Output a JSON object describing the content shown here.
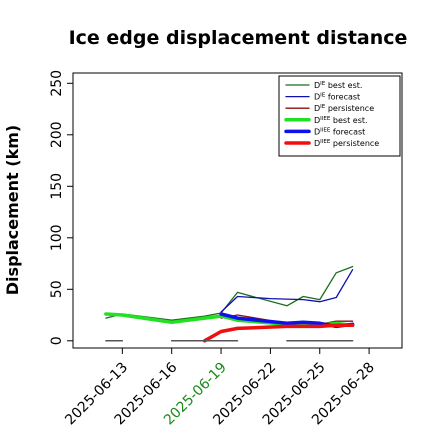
{
  "chart_data": {
    "type": "line",
    "title": "Ice edge displacement distance",
    "ylabel": "Displacement (km)",
    "xlabel": "",
    "ylim": [
      -7,
      260
    ],
    "yticks": [
      0,
      50,
      100,
      150,
      200,
      250
    ],
    "x_axis": {
      "type": "date",
      "range": [
        "2025-06-10",
        "2025-06-30"
      ],
      "ticks": [
        {
          "date": "2025-06-13",
          "label": "2025-06-13",
          "color": "#000000"
        },
        {
          "date": "2025-06-16",
          "label": "2025-06-16",
          "color": "#000000"
        },
        {
          "date": "2025-06-19",
          "label": "2025-06-19",
          "color": "#1a8a1a"
        },
        {
          "date": "2025-06-22",
          "label": "2025-06-22",
          "color": "#000000"
        },
        {
          "date": "2025-06-25",
          "label": "2025-06-25",
          "color": "#000000"
        },
        {
          "date": "2025-06-28",
          "label": "2025-06-28",
          "color": "#000000"
        }
      ]
    },
    "legend": {
      "placement": "top-right",
      "entries": [
        {
          "base": "D",
          "sup": "IE",
          "text": "best est.",
          "color": "#1a6e1a",
          "width": 1.3
        },
        {
          "base": "D",
          "sup": "IE",
          "text": "forecast",
          "color": "#1010b0",
          "width": 1.3
        },
        {
          "base": "D",
          "sup": "IE",
          "text": "persistence",
          "color": "#8b1010",
          "width": 1.3
        },
        {
          "base": "D",
          "sup": "IIEE",
          "text": "best est.",
          "color": "#22e022",
          "width": 3.5
        },
        {
          "base": "D",
          "sup": "IIEE",
          "text": "forecast",
          "color": "#1010ee",
          "width": 3.5
        },
        {
          "base": "D",
          "sup": "IIEE",
          "text": "persistence",
          "color": "#ee1010",
          "width": 3.5
        }
      ]
    },
    "series": [
      {
        "color": "#1a6e1a",
        "width": 1.3,
        "points": [
          [
            "2025-06-12",
            22
          ],
          [
            "2025-06-13",
            26
          ],
          [
            "2025-06-16",
            20
          ],
          [
            "2025-06-18",
            24
          ],
          [
            "2025-06-19",
            27
          ],
          [
            "2025-06-20",
            47
          ],
          [
            "2025-06-23",
            34
          ],
          [
            "2025-06-24",
            43
          ],
          [
            "2025-06-25",
            40
          ],
          [
            "2025-06-26",
            66
          ],
          [
            "2025-06-27",
            72
          ]
        ]
      },
      {
        "color": "#1010b0",
        "width": 1.3,
        "points": [
          [
            "2025-06-19",
            28
          ],
          [
            "2025-06-20",
            43
          ],
          [
            "2025-06-22",
            41
          ],
          [
            "2025-06-24",
            40
          ],
          [
            "2025-06-25",
            38
          ],
          [
            "2025-06-26",
            42
          ],
          [
            "2025-06-27",
            69
          ]
        ]
      },
      {
        "color": "#8b1010",
        "width": 1.3,
        "points": [
          [
            "2025-06-19",
            22
          ],
          [
            "2025-06-20",
            25
          ],
          [
            "2025-06-23",
            17
          ],
          [
            "2025-06-25",
            16
          ],
          [
            "2025-06-26",
            19
          ],
          [
            "2025-06-27",
            19
          ]
        ]
      },
      {
        "color": "#22e022",
        "width": 3.5,
        "points": [
          [
            "2025-06-12",
            26
          ],
          [
            "2025-06-13",
            25
          ],
          [
            "2025-06-16",
            18
          ],
          [
            "2025-06-19",
            24
          ],
          [
            "2025-06-20",
            20
          ],
          [
            "2025-06-23",
            16
          ],
          [
            "2025-06-24",
            16
          ],
          [
            "2025-06-25",
            15
          ],
          [
            "2025-06-26",
            17
          ],
          [
            "2025-06-27",
            15
          ]
        ]
      },
      {
        "color": "#1010ee",
        "width": 3.5,
        "points": [
          [
            "2025-06-19",
            26
          ],
          [
            "2025-06-20",
            22
          ],
          [
            "2025-06-23",
            17
          ],
          [
            "2025-06-24",
            18
          ],
          [
            "2025-06-25",
            17
          ],
          [
            "2025-06-26",
            14
          ],
          [
            "2025-06-27",
            16
          ]
        ]
      },
      {
        "color": "#ee1010",
        "width": 3.5,
        "points": [
          [
            "2025-06-18",
            0
          ],
          [
            "2025-06-19",
            9
          ],
          [
            "2025-06-20",
            12
          ],
          [
            "2025-06-23",
            14
          ],
          [
            "2025-06-24",
            14
          ],
          [
            "2025-06-25",
            14
          ],
          [
            "2025-06-26",
            15
          ],
          [
            "2025-06-27",
            15
          ]
        ]
      },
      {
        "color": "#555555",
        "width": 1.5,
        "points": [
          [
            "2025-06-12",
            0
          ],
          [
            "2025-06-13",
            0
          ]
        ]
      },
      {
        "color": "#555555",
        "width": 1.5,
        "points": [
          [
            "2025-06-16",
            0
          ],
          [
            "2025-06-20",
            0
          ]
        ]
      },
      {
        "color": "#555555",
        "width": 1.5,
        "points": [
          [
            "2025-06-23",
            0
          ],
          [
            "2025-06-27",
            0
          ]
        ]
      }
    ]
  }
}
